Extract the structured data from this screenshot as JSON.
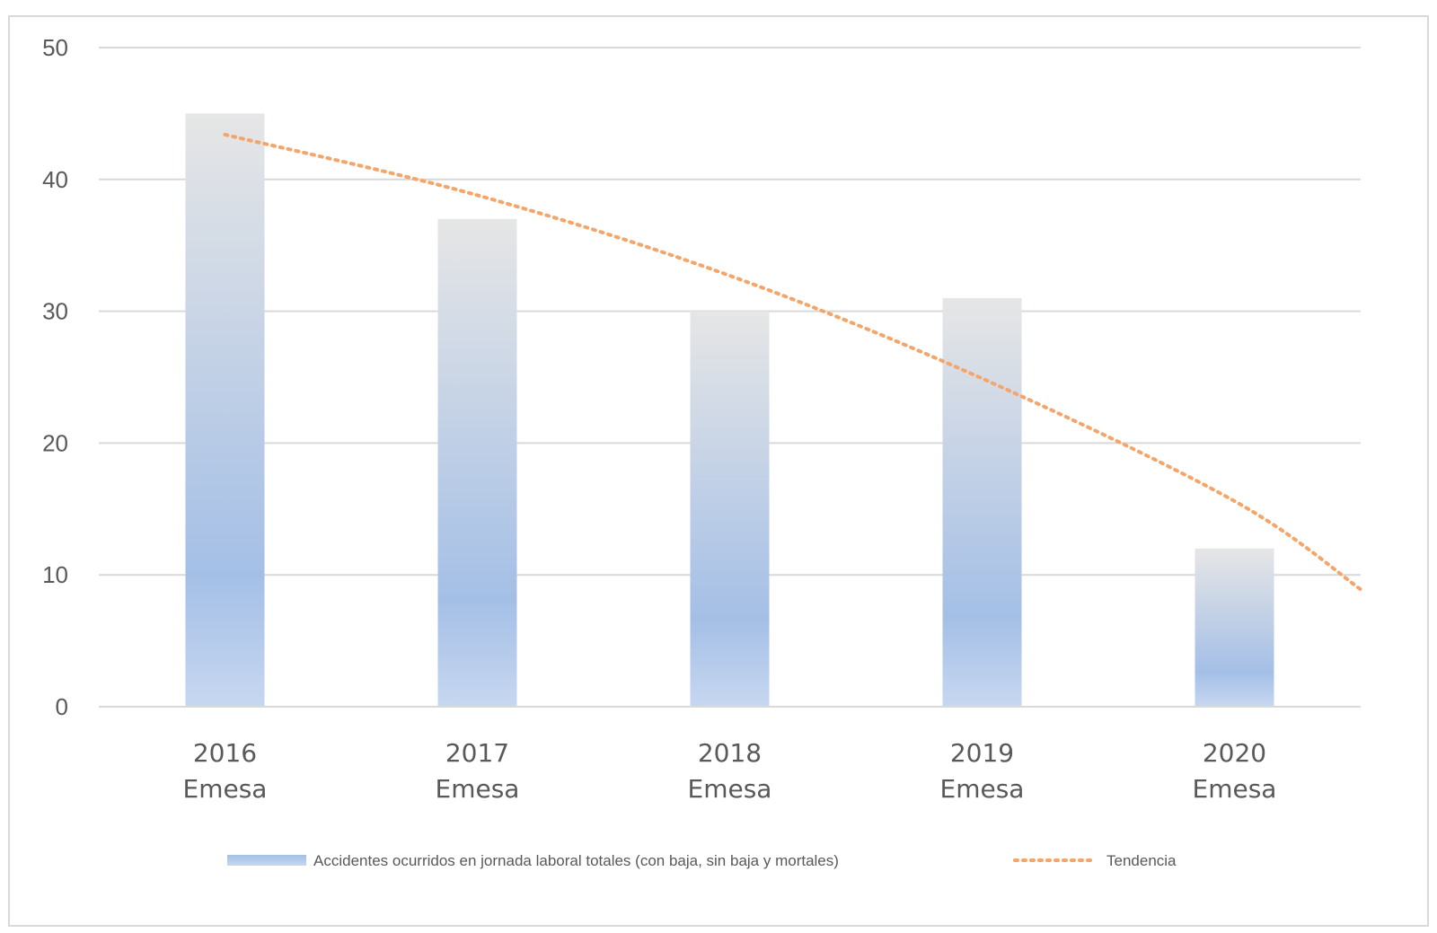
{
  "chart_data": {
    "type": "bar",
    "categories": [
      [
        "2016",
        "Emesa"
      ],
      [
        "2017",
        "Emesa"
      ],
      [
        "2018",
        "Emesa"
      ],
      [
        "2019",
        "Emesa"
      ],
      [
        "2020",
        "Emesa"
      ]
    ],
    "series": [
      {
        "name": "Accidentes ocurridos en jornada laboral totales (con baja, sin baja y mortales)",
        "values": [
          45,
          37,
          30,
          31,
          12
        ]
      }
    ],
    "trendline": {
      "name": "Tendencia",
      "type": "polynomial",
      "values": [
        43.4,
        38.8,
        32.7,
        24.9,
        15.6
      ],
      "end_value": 8.9
    },
    "y_ticks": [
      0,
      10,
      20,
      30,
      40,
      50
    ],
    "ylim": [
      0,
      50
    ],
    "grid": true,
    "legend_position": "bottom",
    "colors": {
      "bar_top": "#e6e6e6",
      "bar_mid": "#a4bfe6",
      "bar_bottom": "#c7d7f0",
      "trend": "#f4a56a",
      "grid": "#d9d9d9",
      "text": "#595959"
    }
  }
}
